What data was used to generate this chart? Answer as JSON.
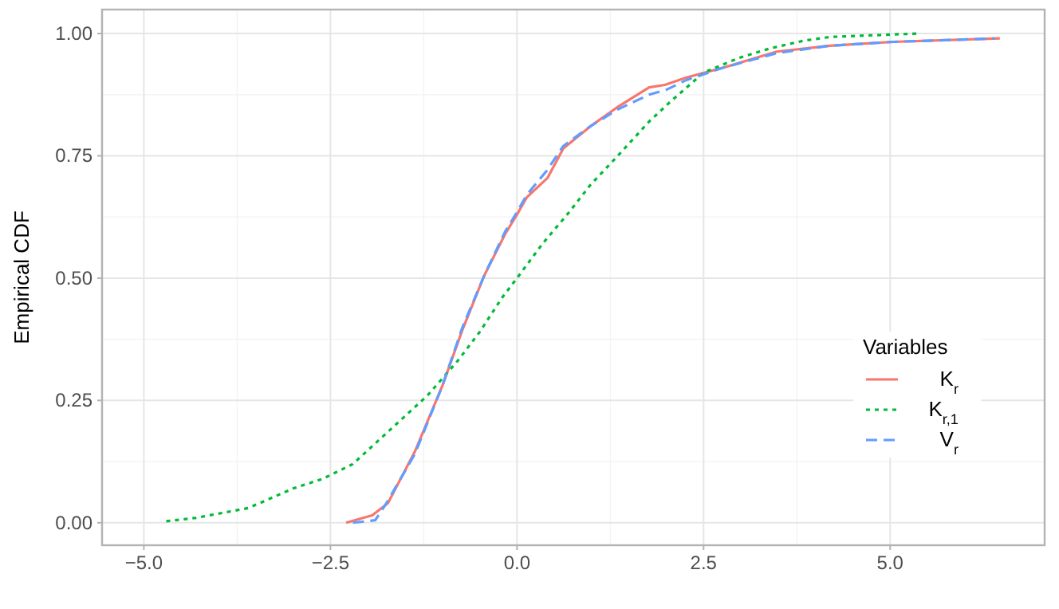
{
  "chart_data": {
    "type": "line",
    "ylabel": "Empirical CDF",
    "legend_title": "Variables",
    "legend": "bottom right",
    "grid": true,
    "xlim": [
      -5.56,
      7.07
    ],
    "ylim": [
      -0.046,
      1.049
    ],
    "xticks": [
      {
        "value": -5,
        "label": "−5.0"
      },
      {
        "value": -2.5,
        "label": "−2.5"
      },
      {
        "value": 0,
        "label": "0.0"
      },
      {
        "value": 2.5,
        "label": "2.5"
      },
      {
        "value": 5,
        "label": "5.0"
      }
    ],
    "yticks": [
      {
        "value": 0,
        "label": "0.00"
      },
      {
        "value": 0.25,
        "label": "0.25"
      },
      {
        "value": 0.5,
        "label": "0.50"
      },
      {
        "value": 0.75,
        "label": "0.75"
      },
      {
        "value": 1,
        "label": "1.00"
      }
    ],
    "series": [
      {
        "name": "K$_{r}$",
        "color": "#f8766d",
        "line_style": "solid",
        "x": [
          -2.29,
          -1.94,
          -1.73,
          -1.37,
          -1.0,
          -0.73,
          -0.44,
          -0.16,
          0.0,
          0.13,
          0.41,
          0.62,
          0.98,
          1.35,
          1.77,
          1.98,
          2.27,
          2.76,
          3.48,
          4.19,
          5.04,
          6.47
        ],
        "values": [
          0.0,
          0.015,
          0.04,
          0.145,
          0.28,
          0.395,
          0.505,
          0.59,
          0.63,
          0.665,
          0.705,
          0.765,
          0.81,
          0.85,
          0.89,
          0.895,
          0.91,
          0.93,
          0.963,
          0.975,
          0.983,
          0.99
        ]
      },
      {
        "name": "K$_{r,1}$",
        "color": "#00ba38",
        "line_style": "dotted",
        "x": [
          -4.7,
          -4.3,
          -3.6,
          -3.0,
          -2.6,
          -2.2,
          -1.7,
          -1.2,
          -0.8,
          -0.5,
          -0.2,
          0.0,
          0.34,
          0.7,
          0.98,
          1.35,
          1.77,
          2.05,
          2.5,
          2.97,
          3.4,
          3.83,
          4.19,
          5.36
        ],
        "values": [
          0.003,
          0.01,
          0.03,
          0.07,
          0.09,
          0.12,
          0.19,
          0.26,
          0.33,
          0.39,
          0.46,
          0.5,
          0.57,
          0.635,
          0.69,
          0.75,
          0.82,
          0.86,
          0.92,
          0.95,
          0.97,
          0.985,
          0.993,
          1.0
        ]
      },
      {
        "name": "V$_{r}$",
        "color": "#619cff",
        "line_style": "dashed",
        "x": [
          -2.2,
          -1.9,
          -1.75,
          -1.37,
          -1.0,
          -0.73,
          -0.44,
          -0.16,
          0.0,
          0.13,
          0.4,
          0.62,
          0.98,
          1.35,
          1.77,
          2.0,
          2.27,
          2.76,
          3.48,
          4.19,
          5.04,
          6.4
        ],
        "values": [
          0.0,
          0.005,
          0.04,
          0.14,
          0.28,
          0.4,
          0.505,
          0.595,
          0.635,
          0.67,
          0.72,
          0.77,
          0.81,
          0.845,
          0.875,
          0.885,
          0.905,
          0.93,
          0.96,
          0.975,
          0.983,
          0.99
        ]
      }
    ]
  }
}
